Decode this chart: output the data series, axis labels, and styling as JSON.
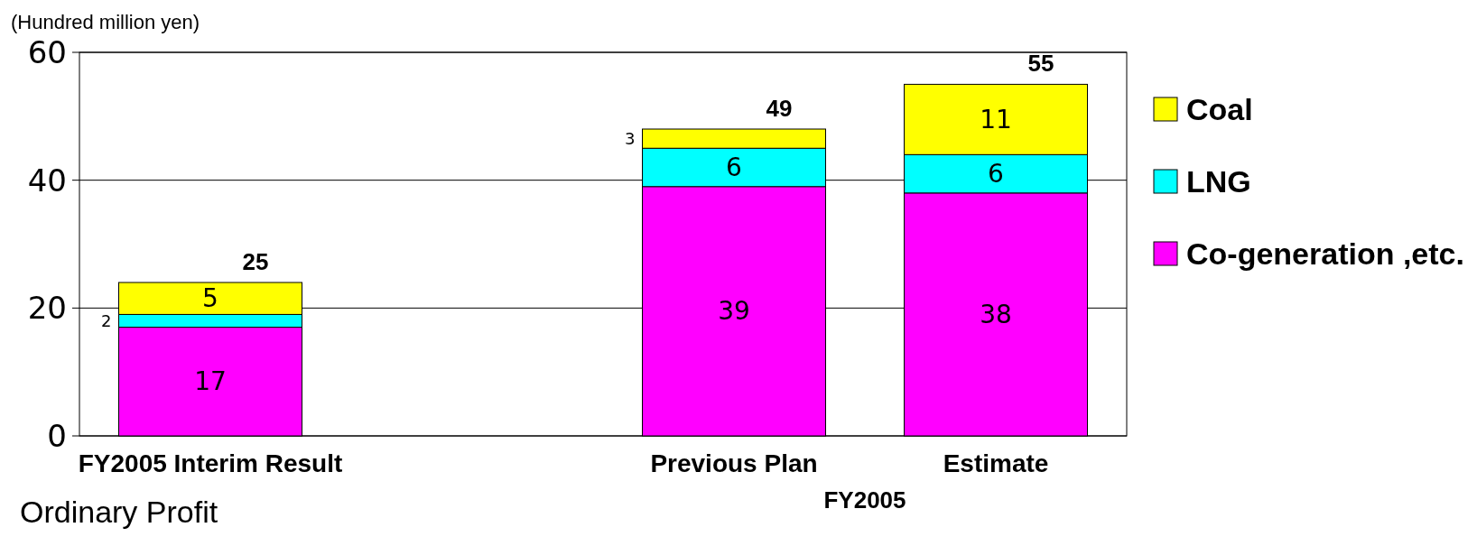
{
  "chart_data": {
    "type": "bar",
    "title": "Ordinary Profit",
    "ylabel": "(Hundred million yen)",
    "stacked": true,
    "data_labels": true,
    "categories": [
      "FY2005 Interim Result",
      null,
      "Previous Plan",
      "Estimate"
    ],
    "series": [
      {
        "name": "Co-generation ,etc.",
        "color": "#ff00ff",
        "values": [
          17,
          null,
          39,
          38
        ]
      },
      {
        "name": "LNG",
        "color": "#00ffff",
        "values": [
          2,
          null,
          6,
          6
        ]
      },
      {
        "name": "Coal",
        "color": "#ffff00",
        "values": [
          5,
          null,
          3,
          11
        ]
      }
    ],
    "totals": [
      "25",
      null,
      "49",
      "55"
    ],
    "annotations": [
      "FY2005"
    ],
    "ylim": [
      0,
      60
    ],
    "yticks": [
      0,
      20,
      40,
      60
    ],
    "grid": "y",
    "legend": "right"
  }
}
